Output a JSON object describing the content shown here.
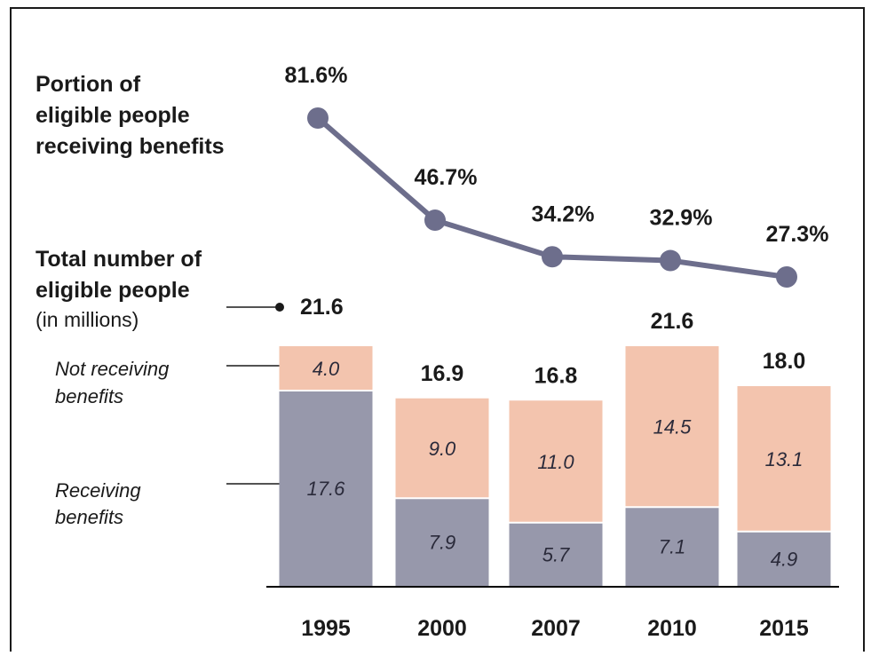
{
  "chart_data": {
    "type": "bar",
    "stacked": true,
    "categories": [
      "1995",
      "2000",
      "2007",
      "2010",
      "2015"
    ],
    "series": [
      {
        "name": "Receiving benefits",
        "values": [
          17.6,
          7.9,
          5.7,
          7.1,
          4.9
        ],
        "value_labels": [
          "17.6",
          "7.9",
          "5.7",
          "7.1",
          "4.9"
        ],
        "color": "#9798ab"
      },
      {
        "name": "Not receiving benefits",
        "values": [
          4.0,
          9.0,
          11.0,
          14.5,
          13.1
        ],
        "value_labels": [
          "4.0",
          "9.0",
          "11.0",
          "14.5",
          "13.1"
        ],
        "color": "#f3c4ae"
      }
    ],
    "totals": [
      21.6,
      16.9,
      16.8,
      21.6,
      18.0
    ],
    "total_labels": [
      "21.6",
      "16.9",
      "16.8",
      "21.6",
      "18.0"
    ],
    "line": {
      "name": "Portion of eligible people receiving benefits",
      "values": [
        81.6,
        46.7,
        34.2,
        32.9,
        27.3
      ],
      "value_labels": [
        "81.6%",
        "46.7%",
        "34.2%",
        "32.9%",
        "27.3%"
      ],
      "color": "#6d6e8c"
    },
    "line_title": [
      "Portion of",
      "eligible people",
      "receiving benefits"
    ],
    "bar_title": [
      "Total number of",
      "eligible people"
    ],
    "bar_subtitle": "(in millions)",
    "legend_not_receiving": [
      "Not receiving",
      "benefits"
    ],
    "legend_receiving": [
      "Receiving",
      "benefits"
    ],
    "baseline_color": "#000000"
  }
}
